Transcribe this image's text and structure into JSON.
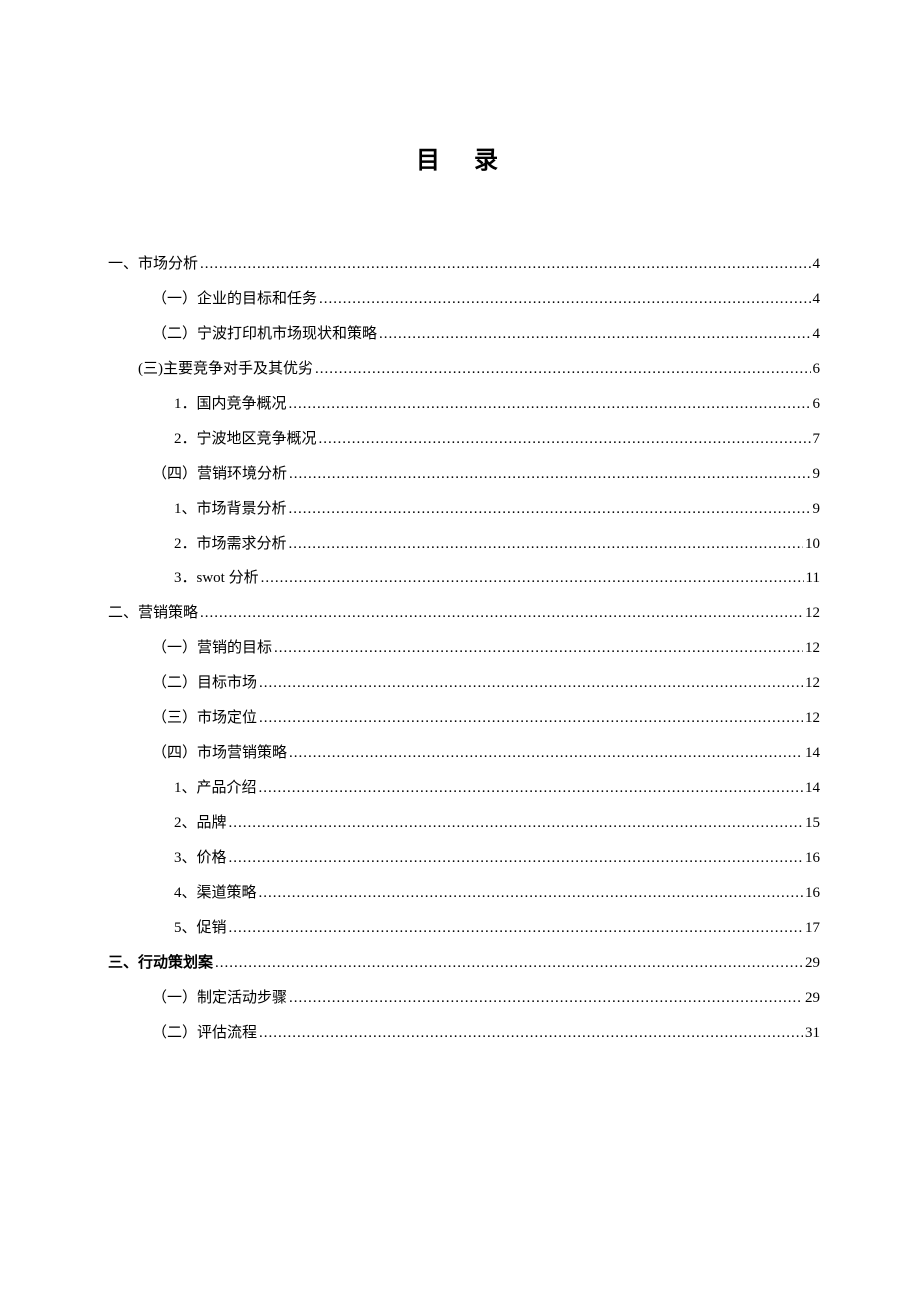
{
  "title": "目 录",
  "entries": [
    {
      "label": "一、市场分析 ",
      "page": "4",
      "indent": "indent-0",
      "bold": false
    },
    {
      "label": "（一）企业的目标和任务 ",
      "page": "4",
      "indent": "indent-1",
      "bold": false
    },
    {
      "label": "（二）宁波打印机市场现状和策略 ",
      "page": "4",
      "indent": "indent-1",
      "bold": false
    },
    {
      "label": "(三)主要竞争对手及其优劣",
      "page": "6",
      "indent": "indent-1b",
      "bold": false
    },
    {
      "label": "1．国内竞争概况 ",
      "page": "6",
      "indent": "indent-2",
      "bold": false
    },
    {
      "label": "2．宁波地区竞争概况 ",
      "page": "7",
      "indent": "indent-2",
      "bold": false
    },
    {
      "label": "（四）营销环境分析 ",
      "page": "9",
      "indent": "indent-1",
      "bold": false
    },
    {
      "label": "1、市场背景分析 ",
      "page": "9",
      "indent": "indent-2",
      "bold": false
    },
    {
      "label": "2．市场需求分析 ",
      "page": "10",
      "indent": "indent-2",
      "bold": false
    },
    {
      "label": "3．swot 分析 ",
      "page": "11",
      "indent": "indent-2",
      "bold": false
    },
    {
      "label": "二、营销策略 ",
      "page": "12",
      "indent": "indent-0",
      "bold": false
    },
    {
      "label": "（一）营销的目标 ",
      "page": "12",
      "indent": "indent-1",
      "bold": false
    },
    {
      "label": "（二）目标市场 ",
      "page": "12",
      "indent": "indent-1",
      "bold": false
    },
    {
      "label": "（三）市场定位 ",
      "page": "12",
      "indent": "indent-1",
      "bold": false
    },
    {
      "label": "（四）市场营销策略 ",
      "page": "14",
      "indent": "indent-1",
      "bold": false
    },
    {
      "label": "1、产品介绍 ",
      "page": "14",
      "indent": "indent-2",
      "bold": false
    },
    {
      "label": "2、品牌 ",
      "page": "15",
      "indent": "indent-2",
      "bold": false
    },
    {
      "label": "3、价格 ",
      "page": "16",
      "indent": "indent-2",
      "bold": false
    },
    {
      "label": "4、渠道策略 ",
      "page": "16",
      "indent": "indent-2",
      "bold": false
    },
    {
      "label": "5、促销 ",
      "page": "17",
      "indent": "indent-2",
      "bold": false
    },
    {
      "label": "三、行动策划案 ",
      "page": "29",
      "indent": "indent-0",
      "bold": true
    },
    {
      "label": "（一）制定活动步骤 ",
      "page": "29",
      "indent": "indent-1",
      "bold": false
    },
    {
      "label": "（二）评估流程 ",
      "page": "31",
      "indent": "indent-1",
      "bold": false
    }
  ]
}
